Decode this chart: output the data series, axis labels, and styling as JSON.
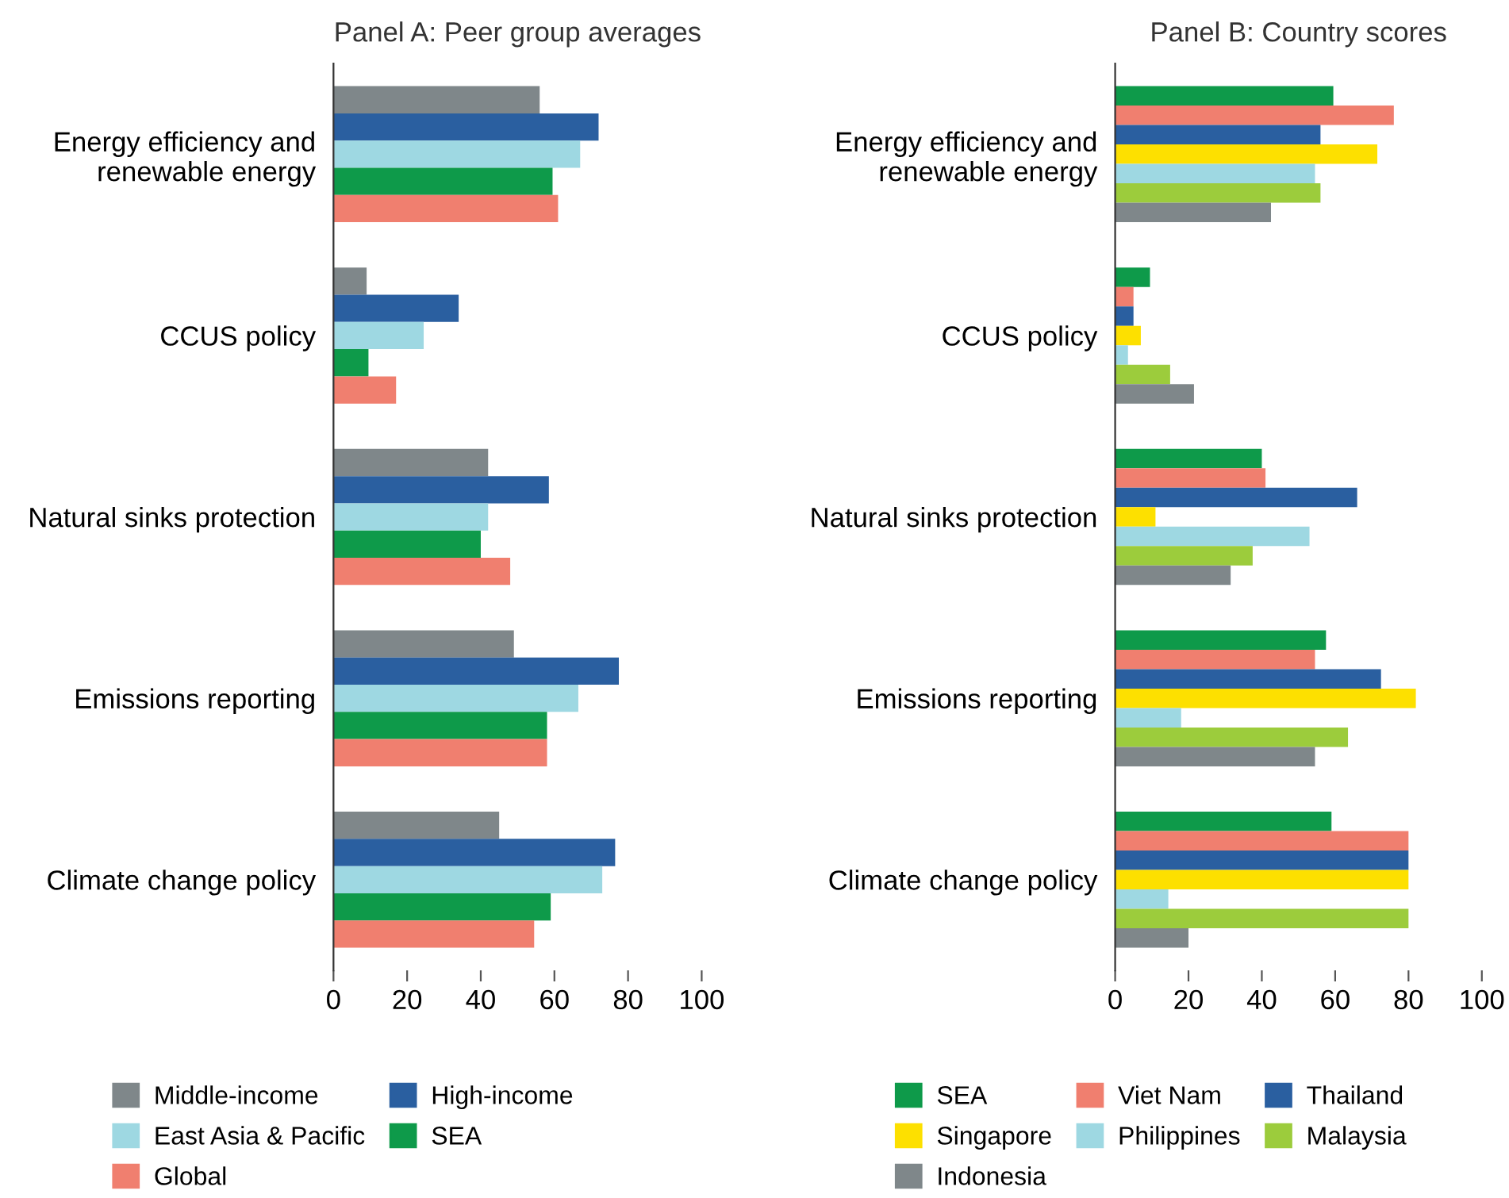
{
  "chart_data": [
    {
      "type": "bar",
      "orientation": "horizontal",
      "title": "Panel A: Peer group averages",
      "categories": [
        "Energy efficiency and\nrenewable energy",
        "CCUS policy",
        "Natural sinks protection",
        "Emissions reporting",
        "Climate change policy"
      ],
      "xlim": [
        0,
        100
      ],
      "xticks": [
        0,
        20,
        40,
        60,
        80,
        100
      ],
      "grid": false,
      "legend": "bottom",
      "series": [
        {
          "name": "Middle-income",
          "color": "#7f878a",
          "values": [
            56,
            9,
            42,
            49,
            45
          ]
        },
        {
          "name": "High-income",
          "color": "#2a5fa0",
          "values": [
            72,
            34,
            58.5,
            77.5,
            76.5
          ]
        },
        {
          "name": "East Asia & Pacific",
          "color": "#9ed8e2",
          "values": [
            67,
            24.5,
            42,
            66.5,
            73
          ]
        },
        {
          "name": "SEA",
          "color": "#0e9a4a",
          "values": [
            59.5,
            9.5,
            40,
            58,
            59
          ]
        },
        {
          "name": "Global",
          "color": "#f07f6f",
          "values": [
            61,
            17,
            48,
            58,
            54.5
          ]
        }
      ]
    },
    {
      "type": "bar",
      "orientation": "horizontal",
      "title": "Panel B: Country scores",
      "categories": [
        "Energy efficiency and\nrenewable energy",
        "CCUS policy",
        "Natural sinks protection",
        "Emissions reporting",
        "Climate change policy"
      ],
      "xlim": [
        0,
        100
      ],
      "xticks": [
        0,
        20,
        40,
        60,
        80,
        100
      ],
      "grid": false,
      "legend": "bottom",
      "series": [
        {
          "name": "SEA",
          "color": "#0e9a4a",
          "values": [
            59.5,
            9.5,
            40,
            57.5,
            59
          ]
        },
        {
          "name": "Viet Nam",
          "color": "#f07f6f",
          "values": [
            76,
            5,
            41,
            54.5,
            80
          ]
        },
        {
          "name": "Thailand",
          "color": "#2a5fa0",
          "values": [
            56,
            5,
            66,
            72.5,
            80
          ]
        },
        {
          "name": "Singapore",
          "color": "#fde000",
          "values": [
            71.5,
            7,
            11,
            82,
            80
          ]
        },
        {
          "name": "Philippines",
          "color": "#9ed8e2",
          "values": [
            54.5,
            3.5,
            53,
            18,
            14.5
          ]
        },
        {
          "name": "Malaysia",
          "color": "#9ccc3c",
          "values": [
            56,
            15,
            37.5,
            63.5,
            80
          ]
        },
        {
          "name": "Indonesia",
          "color": "#7f878a",
          "values": [
            42.5,
            21.5,
            31.5,
            54.5,
            20
          ]
        }
      ]
    }
  ]
}
